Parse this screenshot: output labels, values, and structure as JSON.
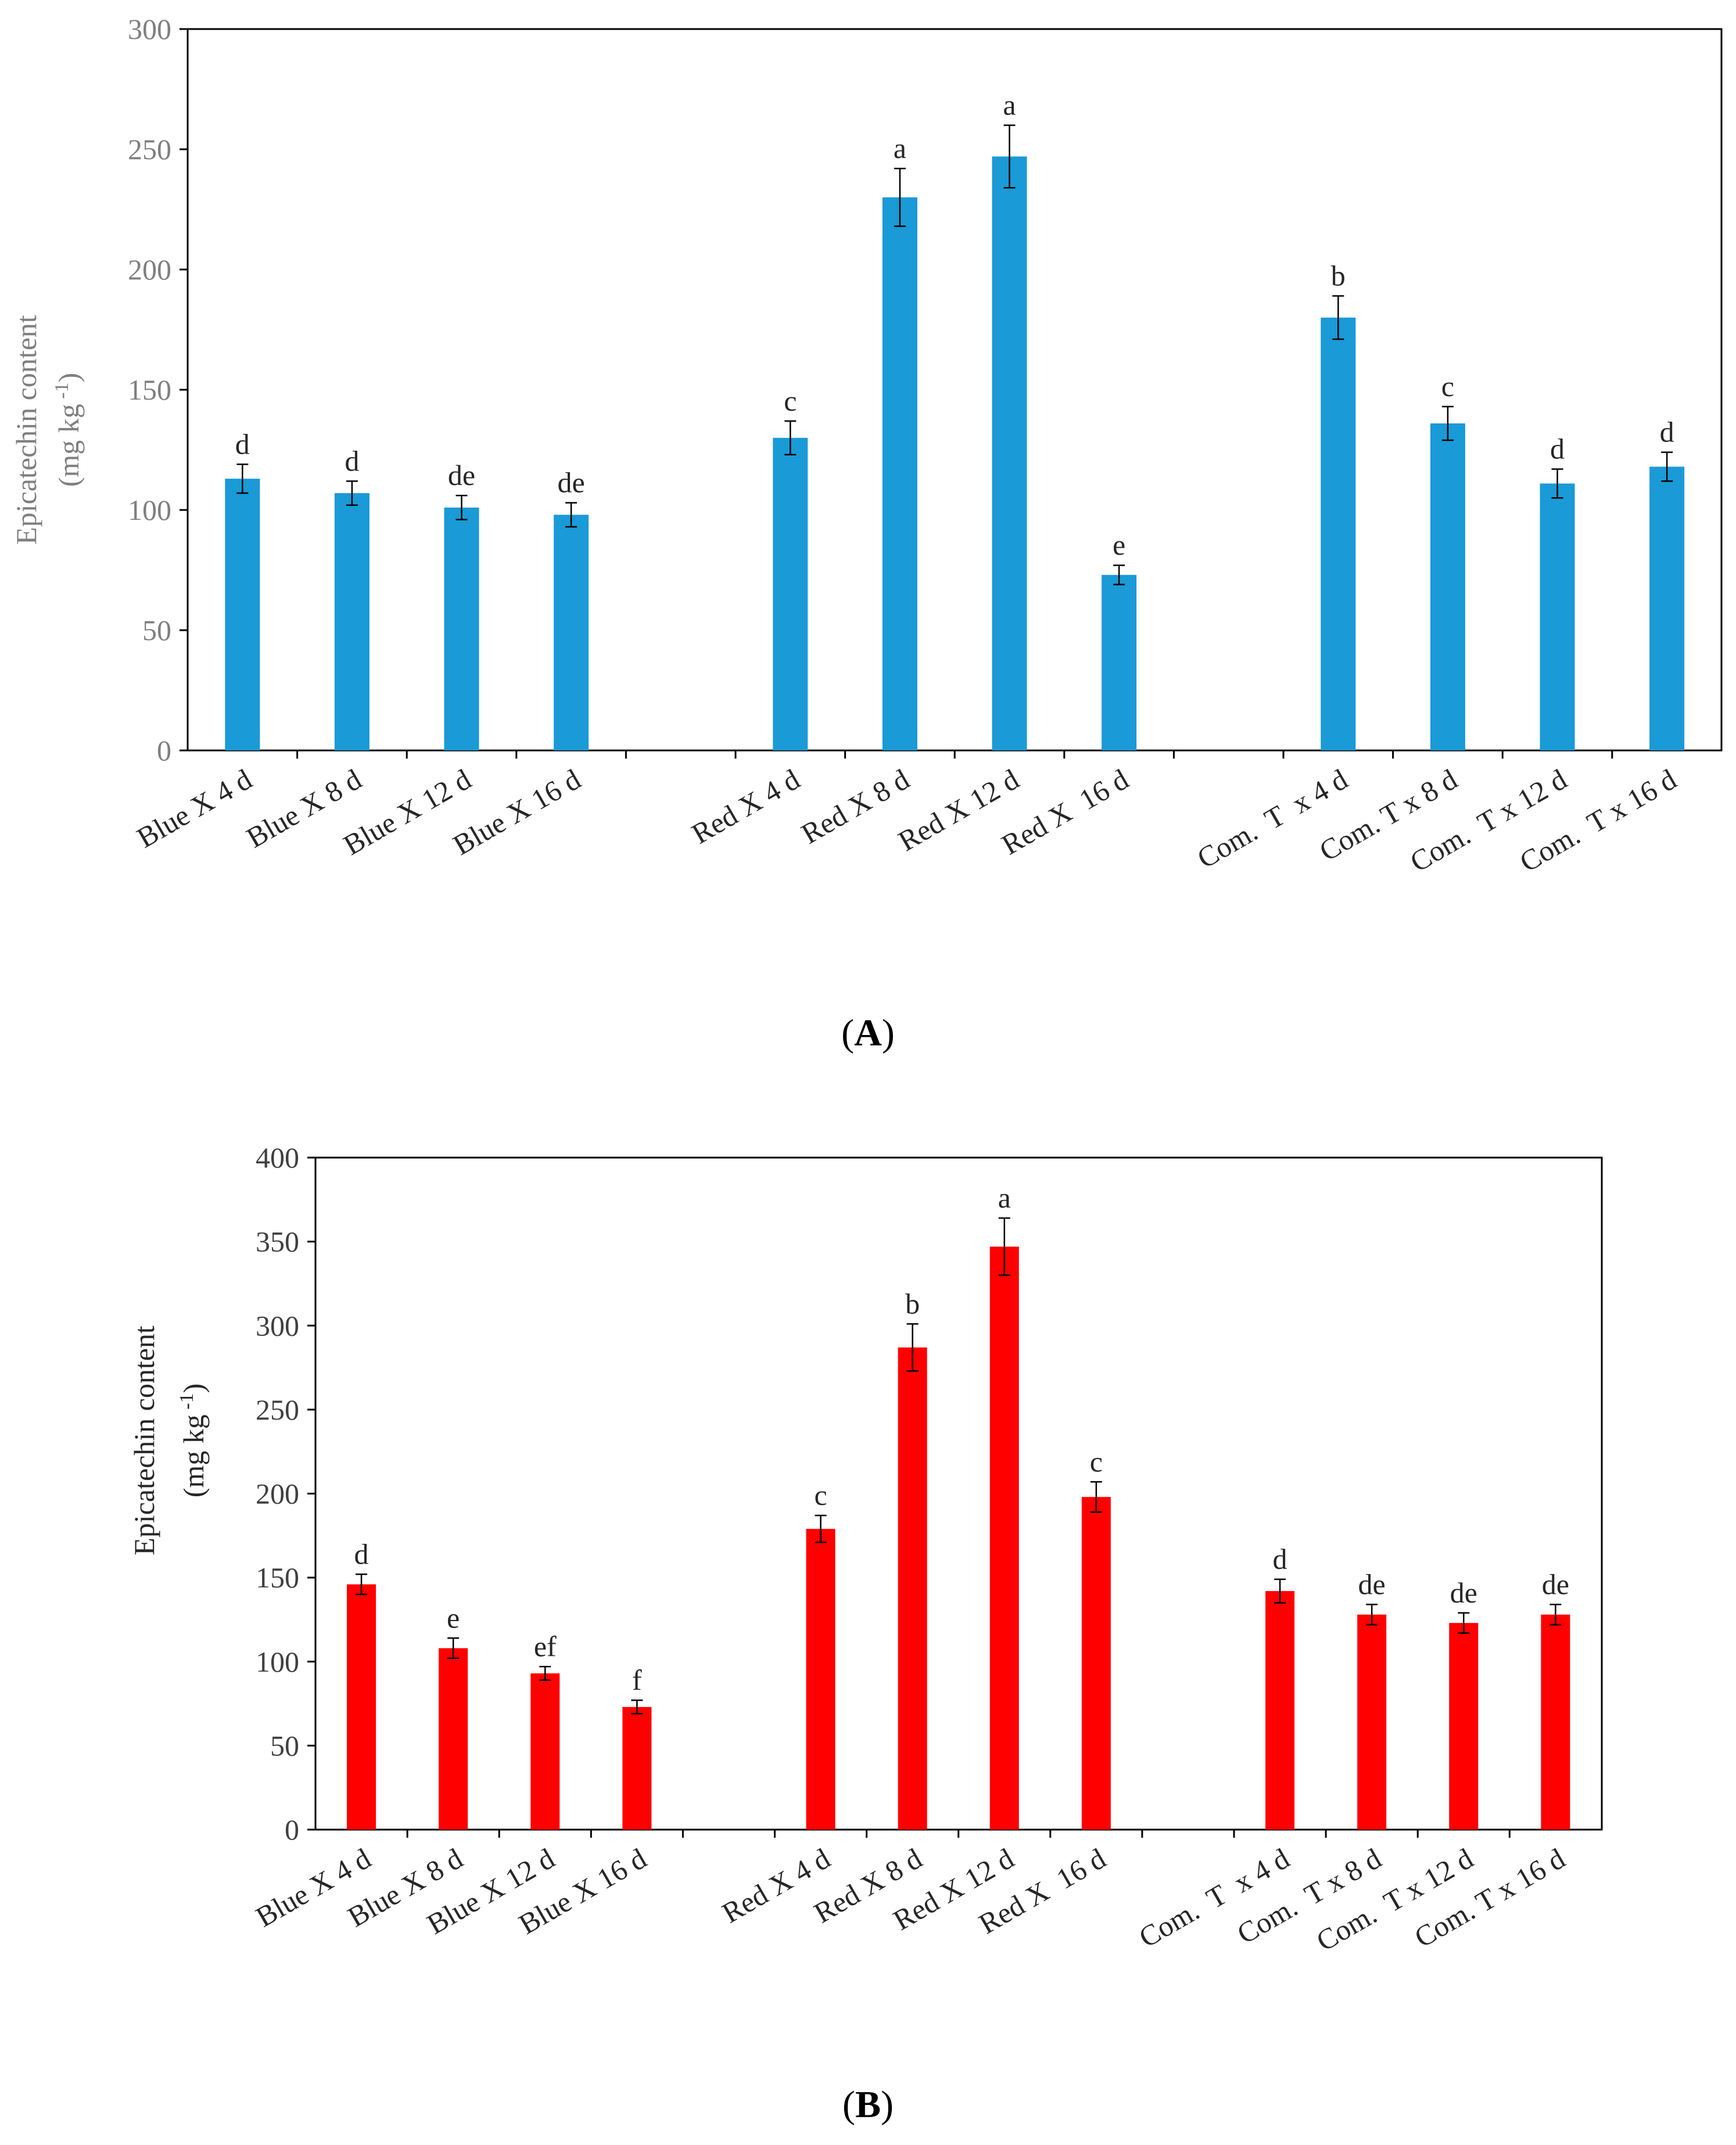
{
  "chart_data": [
    {
      "id": "A",
      "type": "bar",
      "panel_label": "A",
      "ylabel_line1": "Epicatechin content",
      "ylabel_line2_prefix": "(mg kg",
      "ylabel_line2_sup": "-1",
      "ylabel_line2_suffix": ")",
      "ylim": [
        0,
        300
      ],
      "yticks": [
        "0",
        "50",
        "100",
        "150",
        "200",
        "250",
        "300"
      ],
      "bar_color": "#1a9ad6",
      "grid": false,
      "groups": [
        {
          "categories": [
            "Blue X 4 d",
            "Blue X 8 d",
            "Blue X 12 d",
            "Blue X 16 d"
          ],
          "values": [
            113,
            107,
            101,
            98
          ],
          "errors": [
            6,
            5,
            5,
            5
          ],
          "letters": [
            "d",
            "d",
            "de",
            "de"
          ]
        },
        {
          "categories": [
            "Red X 4 d",
            "Red X 8 d",
            "Red X 12 d",
            "Red X  16 d"
          ],
          "values": [
            130,
            230,
            247,
            73
          ],
          "errors": [
            7,
            12,
            13,
            4
          ],
          "letters": [
            "c",
            "a",
            "a",
            "e"
          ]
        },
        {
          "categories": [
            "Com.  T  x 4 d",
            "Com. T x 8 d",
            "Com.  T x 12 d",
            "Com.  T x 16 d"
          ],
          "values": [
            180,
            136,
            111,
            118
          ],
          "errors": [
            9,
            7,
            6,
            6
          ],
          "letters": [
            "b",
            "c",
            "d",
            "d"
          ]
        }
      ]
    },
    {
      "id": "B",
      "type": "bar",
      "panel_label": "B",
      "ylabel_line1": "Epicatechin content",
      "ylabel_line2_prefix": "(mg kg",
      "ylabel_line2_sup": "-1",
      "ylabel_line2_suffix": ")",
      "ylim": [
        0,
        400
      ],
      "yticks": [
        "0",
        "50",
        "100",
        "150",
        "200",
        "250",
        "300",
        "350",
        "400"
      ],
      "bar_color": "#ff0000",
      "grid": false,
      "groups": [
        {
          "categories": [
            "Blue X 4 d",
            "Blue X 8 d",
            "Blue X 12 d",
            "Blue X 16 d"
          ],
          "values": [
            146,
            108,
            93,
            73
          ],
          "errors": [
            6,
            6,
            4,
            4
          ],
          "letters": [
            "d",
            "e",
            "ef",
            "f"
          ]
        },
        {
          "categories": [
            "Red X 4 d",
            "Red X 8 d",
            "Red X 12 d",
            "Red X  16 d"
          ],
          "values": [
            179,
            287,
            347,
            198
          ],
          "errors": [
            8,
            14,
            17,
            9
          ],
          "letters": [
            "c",
            "b",
            "a",
            "c"
          ]
        },
        {
          "categories": [
            "Com.  T  x 4 d",
            "Com.  T x 8 d",
            "Com.  T x 12 d",
            "Com. T x 16 d"
          ],
          "values": [
            142,
            128,
            123,
            128
          ],
          "errors": [
            7,
            6,
            6,
            6
          ],
          "letters": [
            "d",
            "de",
            "de",
            "de"
          ]
        }
      ]
    }
  ]
}
